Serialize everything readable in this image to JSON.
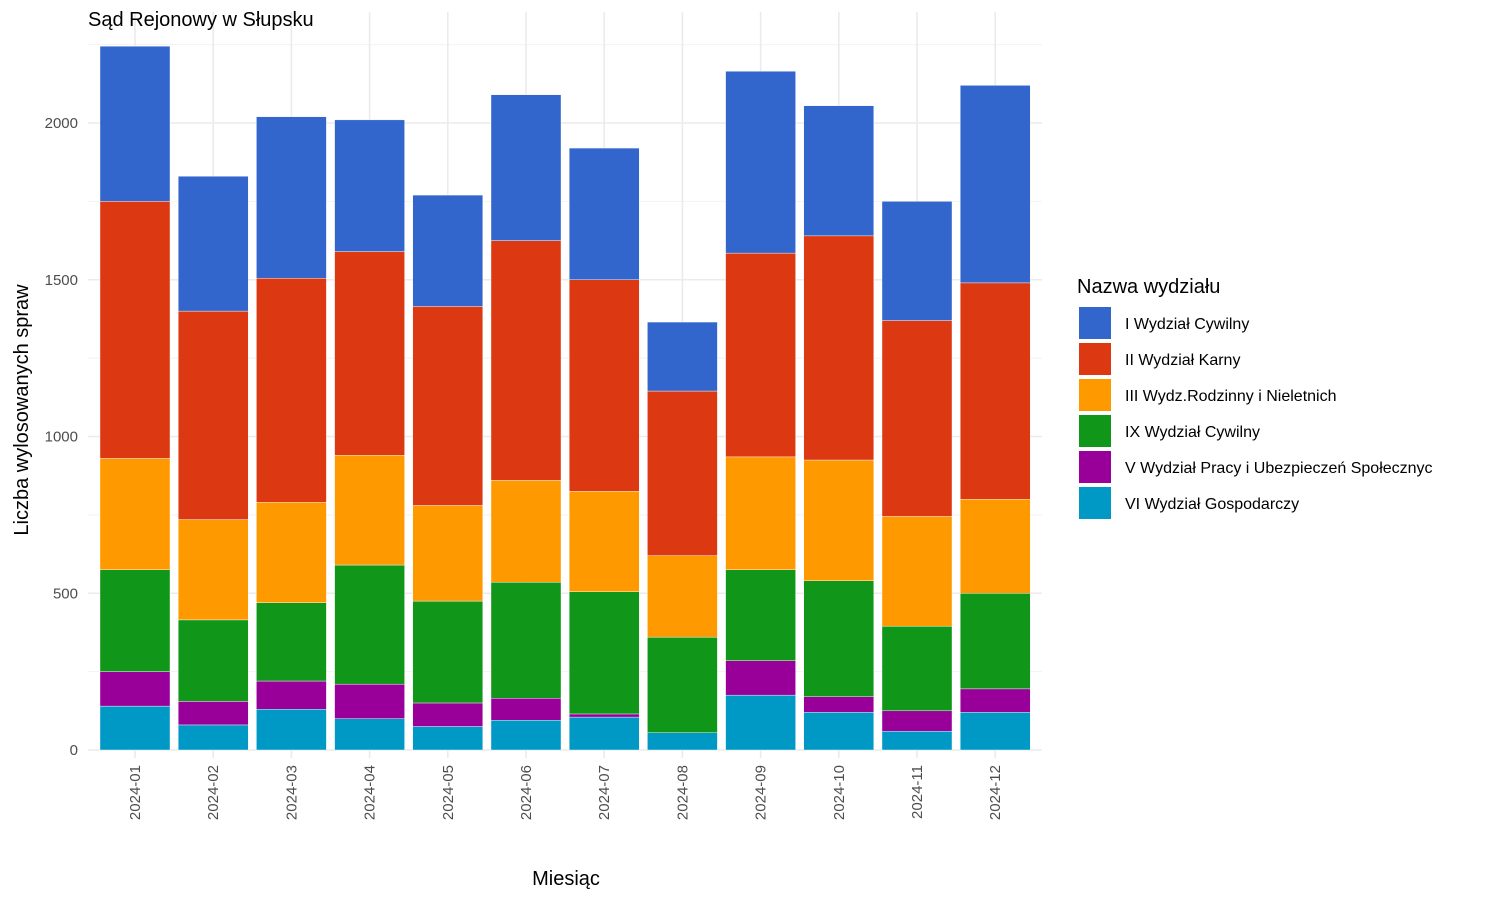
{
  "chart_data": {
    "type": "bar",
    "stacked": true,
    "title": "Sąd Rejonowy w Słupsku",
    "xlabel": "Miesiąc",
    "ylabel": "Liczba wylosowanych spraw",
    "ylim": [
      0,
      2250
    ],
    "yticks": [
      0,
      500,
      1000,
      1500,
      2000
    ],
    "grid": true,
    "legend_title": "Nazwa wydziału",
    "legend_position": "right",
    "categories": [
      "2024-01",
      "2024-02",
      "2024-03",
      "2024-04",
      "2024-05",
      "2024-06",
      "2024-07",
      "2024-08",
      "2024-09",
      "2024-10",
      "2024-11",
      "2024-12"
    ],
    "series": [
      {
        "name": "VI Wydział Gospodarczy",
        "color": "#0099C6",
        "values": [
          140,
          80,
          130,
          100,
          75,
          95,
          105,
          55,
          175,
          120,
          60,
          120
        ]
      },
      {
        "name": "V Wydział Pracy i Ubezpieczeń Społecznyc",
        "color": "#990099",
        "values": [
          110,
          75,
          90,
          110,
          75,
          70,
          10,
          0,
          110,
          50,
          65,
          75
        ]
      },
      {
        "name": "IX Wydział Cywilny",
        "color": "#109618",
        "values": [
          325,
          260,
          250,
          380,
          325,
          370,
          390,
          305,
          290,
          370,
          270,
          305
        ]
      },
      {
        "name": "III Wydz.Rodzinny i Nieletnich",
        "color": "#FF9900",
        "values": [
          355,
          320,
          320,
          350,
          305,
          325,
          320,
          260,
          360,
          385,
          350,
          300
        ]
      },
      {
        "name": "II Wydział Karny",
        "color": "#DC3912",
        "values": [
          820,
          665,
          715,
          650,
          635,
          765,
          675,
          525,
          650,
          715,
          625,
          690
        ]
      },
      {
        "name": "I Wydział Cywilny",
        "color": "#3366CC",
        "values": [
          495,
          430,
          515,
          420,
          355,
          465,
          420,
          220,
          580,
          415,
          380,
          630
        ]
      }
    ],
    "legend_order": [
      "I Wydział Cywilny",
      "II Wydział Karny",
      "III Wydz.Rodzinny i Nieletnich",
      "IX Wydział Cywilny",
      "V Wydział Pracy i Ubezpieczeń Społecznyc",
      "VI Wydział Gospodarczy"
    ]
  }
}
